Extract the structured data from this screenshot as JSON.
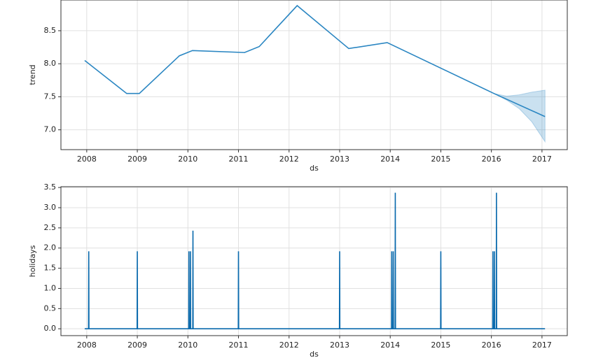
{
  "chart_data": [
    {
      "type": "line",
      "xlabel": "ds",
      "ylabel": "trend",
      "x": [
        2007.96,
        2008.79,
        2009.04,
        2009.83,
        2010.09,
        2011.12,
        2011.41,
        2012.16,
        2013.18,
        2013.94,
        2016.05,
        2017.06
      ],
      "series": [
        {
          "name": "trend",
          "color": "#2a86c2",
          "values": [
            8.05,
            7.55,
            7.55,
            8.12,
            8.2,
            8.17,
            8.26,
            8.88,
            8.23,
            8.32,
            7.55,
            7.2
          ]
        }
      ],
      "band": {
        "color": "#2a86c2",
        "x": [
          2016.05,
          2016.3,
          2016.55,
          2016.8,
          2017.06
        ],
        "upper": [
          7.55,
          7.51,
          7.53,
          7.57,
          7.6
        ],
        "lower": [
          7.55,
          7.45,
          7.32,
          7.12,
          6.82
        ]
      },
      "xlim": [
        2007.49,
        2017.5
      ],
      "ylim": [
        6.7,
        8.965
      ],
      "xticks": [
        2008,
        2009,
        2010,
        2011,
        2012,
        2013,
        2014,
        2015,
        2016,
        2017
      ],
      "yticks": [
        {
          "value": 7,
          "label": "7.0"
        },
        7.5,
        {
          "value": 8,
          "label": "8.0"
        },
        8.5
      ],
      "grid": true
    },
    {
      "type": "line",
      "xlabel": "ds",
      "ylabel": "holidays",
      "x": [
        2007.96,
        2008.036,
        2008.04,
        2008.044,
        2008.996,
        2009.0,
        2009.004,
        2010.016,
        2010.02,
        2010.024,
        2010.046,
        2010.05,
        2010.054,
        2010.096,
        2010.1,
        2010.104,
        2010.996,
        2011.0,
        2011.004,
        2012.996,
        2013.0,
        2013.004,
        2014.026,
        2014.03,
        2014.034,
        2014.056,
        2014.06,
        2014.064,
        2014.096,
        2014.1,
        2014.104,
        2014.996,
        2015.0,
        2015.004,
        2016.026,
        2016.03,
        2016.034,
        2016.056,
        2016.06,
        2016.064,
        2016.096,
        2016.1,
        2016.104,
        2017.06
      ],
      "series": [
        {
          "name": "holidays",
          "color": "#0a6aad",
          "values": [
            0,
            0,
            1.92,
            0,
            0,
            1.92,
            0,
            0,
            1.92,
            0,
            0,
            1.92,
            0,
            0,
            2.43,
            0,
            0,
            1.92,
            0,
            0,
            1.92,
            0,
            0,
            1.92,
            0,
            0,
            1.92,
            0,
            0,
            3.37,
            0,
            0,
            1.92,
            0,
            0,
            1.92,
            0,
            0,
            1.92,
            0,
            0,
            3.37,
            0,
            0
          ]
        }
      ],
      "xlim": [
        2007.49,
        2017.5
      ],
      "ylim": [
        -0.17,
        3.52
      ],
      "xticks": [
        2008,
        2009,
        2010,
        2011,
        2012,
        2013,
        2014,
        2015,
        2016,
        2017
      ],
      "yticks": [
        {
          "value": 0,
          "label": "0.0"
        },
        0.5,
        {
          "value": 1,
          "label": "1.0"
        },
        1.5,
        {
          "value": 2,
          "label": "2.0"
        },
        2.5,
        {
          "value": 3,
          "label": "3.0"
        },
        3.5
      ],
      "grid": true
    }
  ]
}
